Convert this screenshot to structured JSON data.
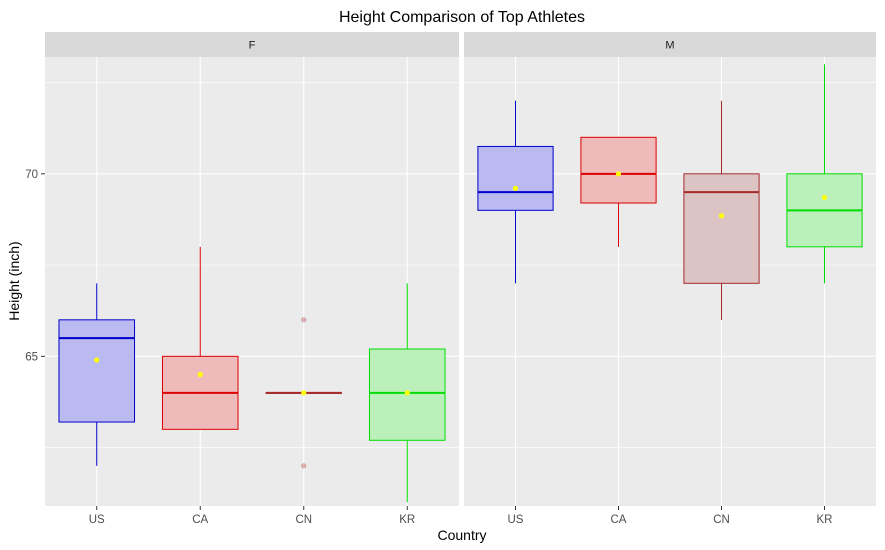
{
  "chart_data": {
    "type": "boxplot",
    "title": "Height Comparison of Top Athletes",
    "xlabel": "Country",
    "ylabel": "Height (inch)",
    "ylim": [
      60.9,
      73.2
    ],
    "y_ticks": [
      65,
      70
    ],
    "y_tick_labels": [
      "65",
      "70"
    ],
    "categories": [
      "US",
      "CA",
      "CN",
      "KR"
    ],
    "colors": {
      "US": "#0000cd",
      "CA": "#dd0000",
      "CN": "#a52a2a",
      "KR": "#00dd00"
    },
    "fills": {
      "US": "#babaf0",
      "CA": "#efbaba",
      "CN": "#dcc4c4",
      "KR": "#bbf0bb"
    },
    "mean_color": "#ffff00",
    "panel_background": "#ebebeb",
    "strip_background": "#d9d9d9",
    "grid": true,
    "legend": "none",
    "panels": [
      {
        "label": "F",
        "boxes": [
          {
            "category": "US",
            "whisker_low": 62.0,
            "q1": 63.2,
            "median": 65.5,
            "q3": 66.0,
            "whisker_high": 67.0,
            "mean": 64.9,
            "outliers": []
          },
          {
            "category": "CA",
            "whisker_low": 63.0,
            "q1": 63.0,
            "median": 64.0,
            "q3": 65.0,
            "whisker_high": 68.0,
            "mean": 64.5,
            "outliers": []
          },
          {
            "category": "CN",
            "whisker_low": 64.0,
            "q1": 64.0,
            "median": 64.0,
            "q3": 64.0,
            "whisker_high": 64.0,
            "mean": 64.0,
            "outliers": [
              62.0,
              66.0
            ]
          },
          {
            "category": "KR",
            "whisker_low": 61.0,
            "q1": 62.7,
            "median": 64.0,
            "q3": 65.2,
            "whisker_high": 67.0,
            "mean": 64.0,
            "outliers": []
          }
        ]
      },
      {
        "label": "M",
        "boxes": [
          {
            "category": "US",
            "whisker_low": 67.0,
            "q1": 69.0,
            "median": 69.5,
            "q3": 70.75,
            "whisker_high": 72.0,
            "mean": 69.6,
            "outliers": []
          },
          {
            "category": "CA",
            "whisker_low": 68.0,
            "q1": 69.2,
            "median": 70.0,
            "q3": 71.0,
            "whisker_high": 71.0,
            "mean": 70.0,
            "outliers": []
          },
          {
            "category": "CN",
            "whisker_low": 66.0,
            "q1": 67.0,
            "median": 69.5,
            "q3": 70.0,
            "whisker_high": 72.0,
            "mean": 68.85,
            "outliers": []
          },
          {
            "category": "KR",
            "whisker_low": 67.0,
            "q1": 68.0,
            "median": 69.0,
            "q3": 70.0,
            "whisker_high": 73.0,
            "mean": 69.35,
            "outliers": []
          }
        ]
      }
    ]
  }
}
